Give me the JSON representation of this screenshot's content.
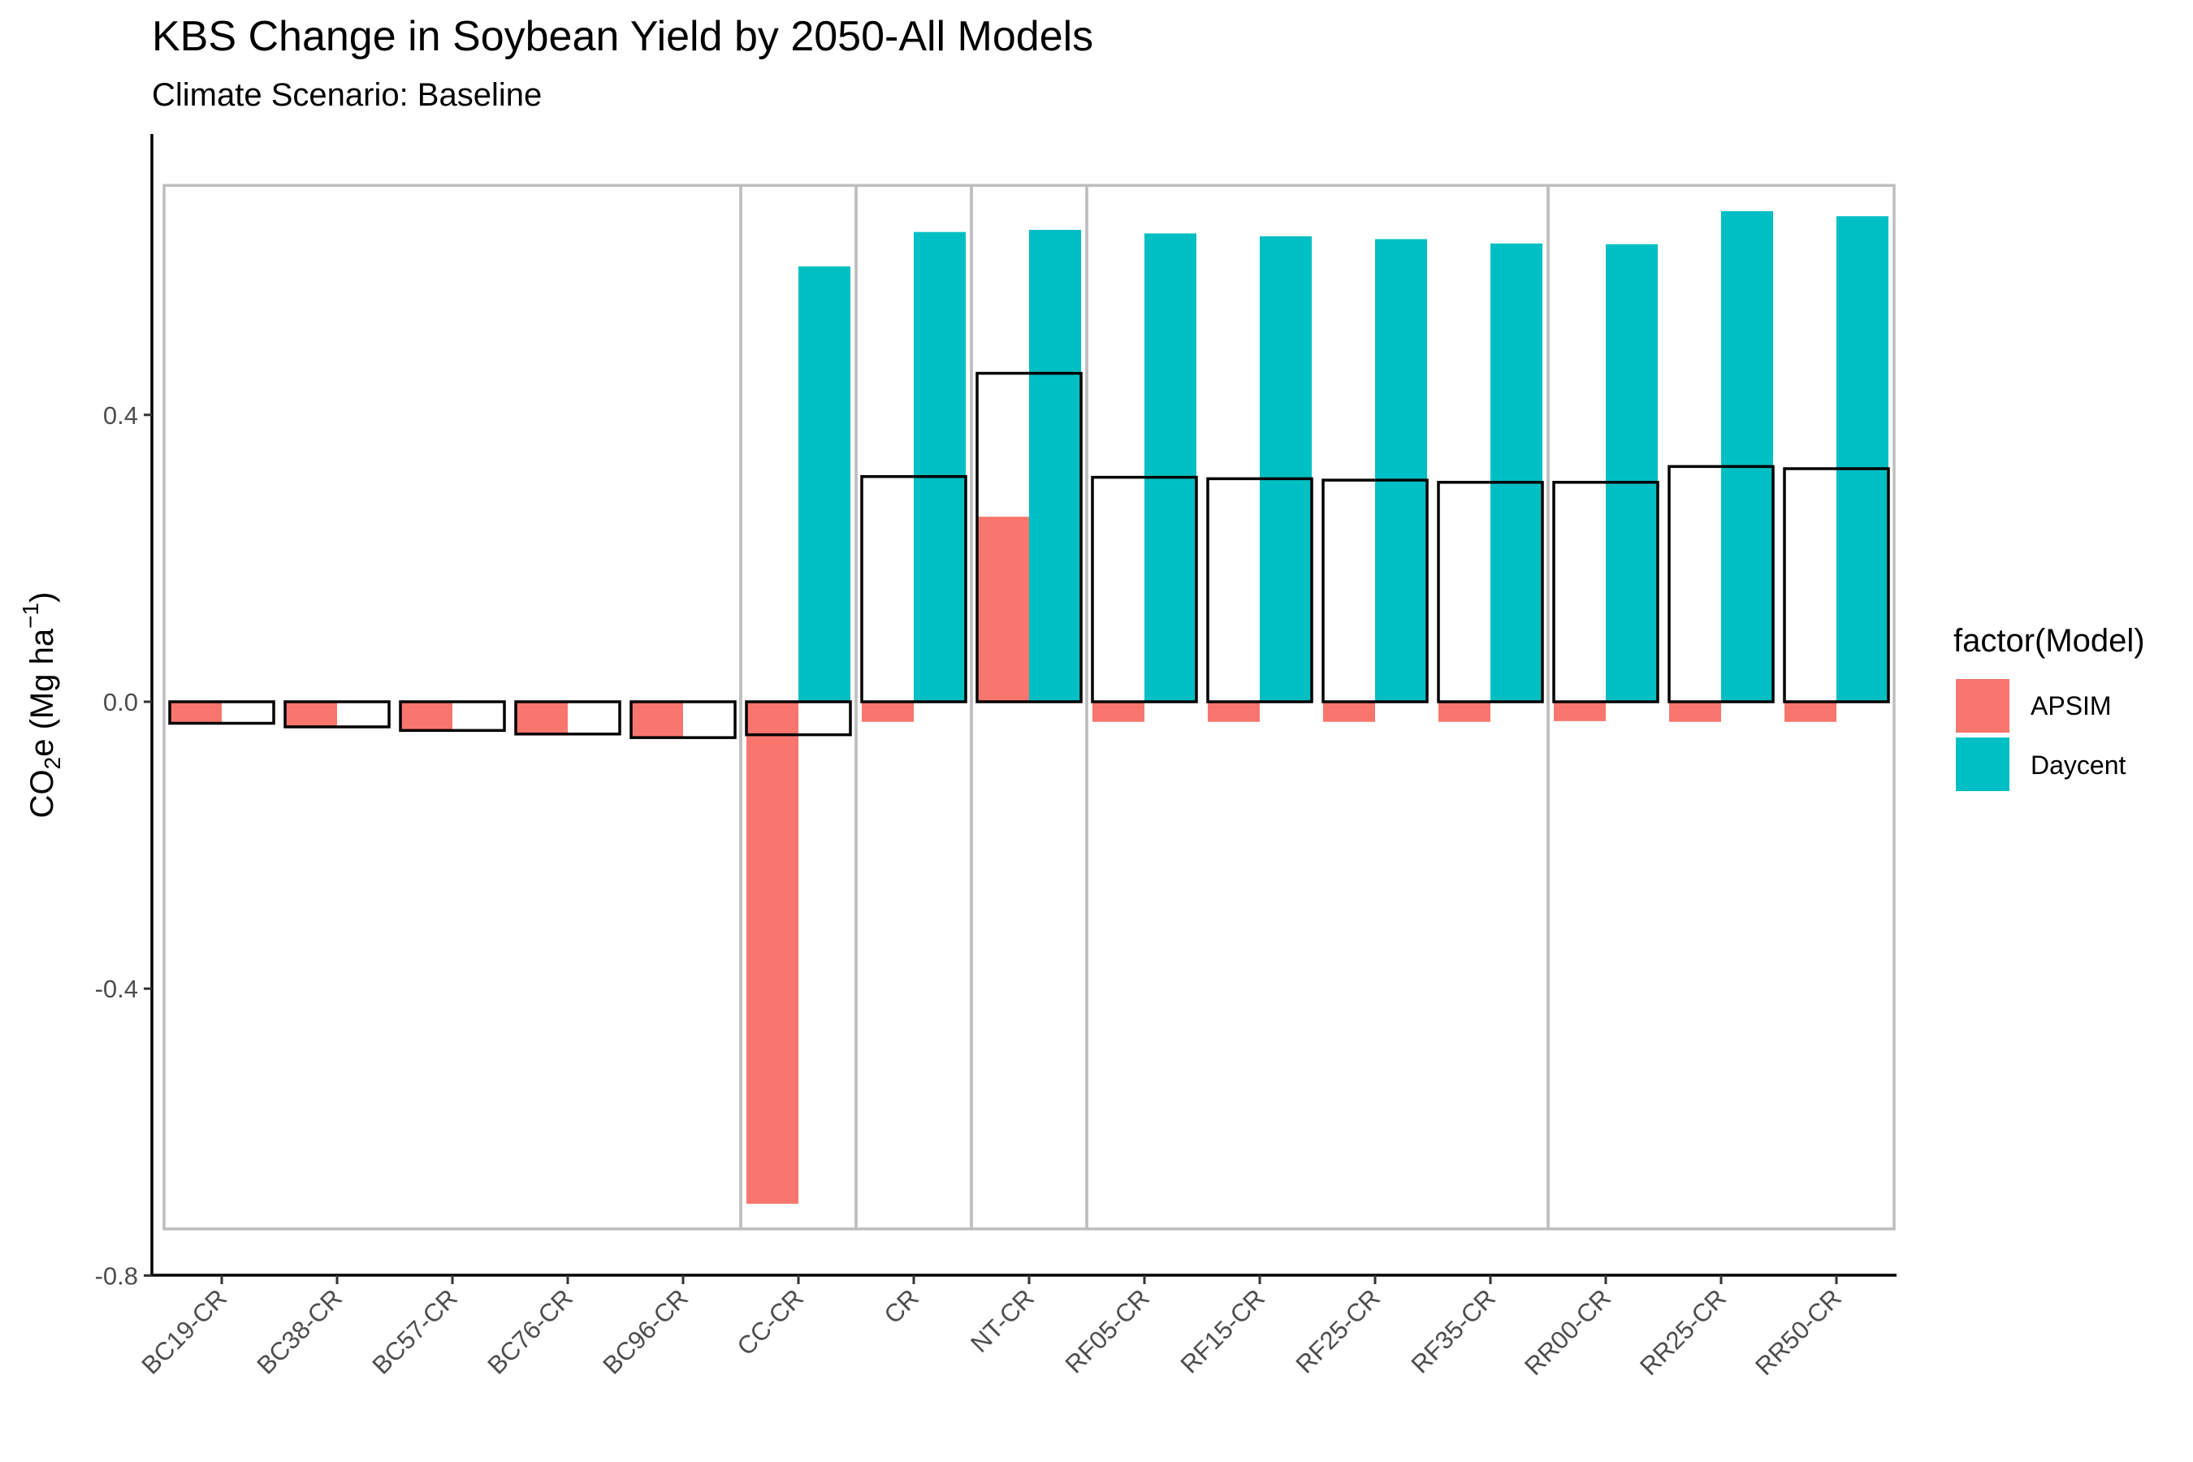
{
  "chart_data": {
    "type": "bar",
    "title": "KBS Change in Soybean Yield by 2050-All Models",
    "subtitle": "Climate Scenario: Baseline",
    "ylabel": "CO2e (Mg ha -1)",
    "ylabel_parts": {
      "base": "CO",
      "sub": "2",
      "after": "e (Mg ha",
      "sup": "−1",
      "close": ")"
    },
    "xlabel": "",
    "ylim": [
      -0.8,
      0.8
    ],
    "yticks": [
      -0.8,
      -0.4,
      0.0,
      0.4
    ],
    "ytick_labels": [
      "-0.8",
      "-0.4",
      "0.0",
      "0.4"
    ],
    "categories": [
      "BC19-CR",
      "BC38-CR",
      "BC57-CR",
      "BC76-CR",
      "BC96-CR",
      "CC-CR",
      "CR",
      "NT-CR",
      "RF05-CR",
      "RF15-CR",
      "RF25-CR",
      "RF35-CR",
      "RR00-CR",
      "RR25-CR",
      "RR50-CR"
    ],
    "series": [
      {
        "name": "APSIM",
        "color": "#F8766D",
        "values": [
          -0.03,
          -0.035,
          -0.04,
          -0.045,
          -0.05,
          -0.7,
          -0.028,
          0.258,
          -0.028,
          -0.028,
          -0.028,
          -0.028,
          -0.027,
          -0.028,
          -0.028
        ]
      },
      {
        "name": "Daycent",
        "color": "#00BFC4",
        "values": [
          null,
          null,
          null,
          null,
          null,
          0.607,
          0.655,
          0.658,
          0.653,
          0.649,
          0.645,
          0.639,
          0.638,
          0.684,
          0.677
        ]
      }
    ],
    "mean_values": [
      -0.03,
      -0.035,
      -0.04,
      -0.045,
      -0.05,
      -0.046,
      0.314,
      0.458,
      0.313,
      0.311,
      0.309,
      0.306,
      0.306,
      0.328,
      0.325
    ],
    "group_boxes": [
      {
        "from": 0,
        "to": 4,
        "ymin": -0.735,
        "ymax": 0.72
      },
      {
        "from": 5,
        "to": 5,
        "ymin": -0.735,
        "ymax": 0.72
      },
      {
        "from": 6,
        "to": 6,
        "ymin": -0.735,
        "ymax": 0.72
      },
      {
        "from": 7,
        "to": 7,
        "ymin": -0.735,
        "ymax": 0.72
      },
      {
        "from": 8,
        "to": 11,
        "ymin": -0.735,
        "ymax": 0.72
      },
      {
        "from": 12,
        "to": 14,
        "ymin": -0.735,
        "ymax": 0.72
      }
    ],
    "legend": {
      "title": "factor(Model)",
      "position": "right",
      "entries": [
        "APSIM",
        "Daycent"
      ]
    },
    "grid": false
  }
}
